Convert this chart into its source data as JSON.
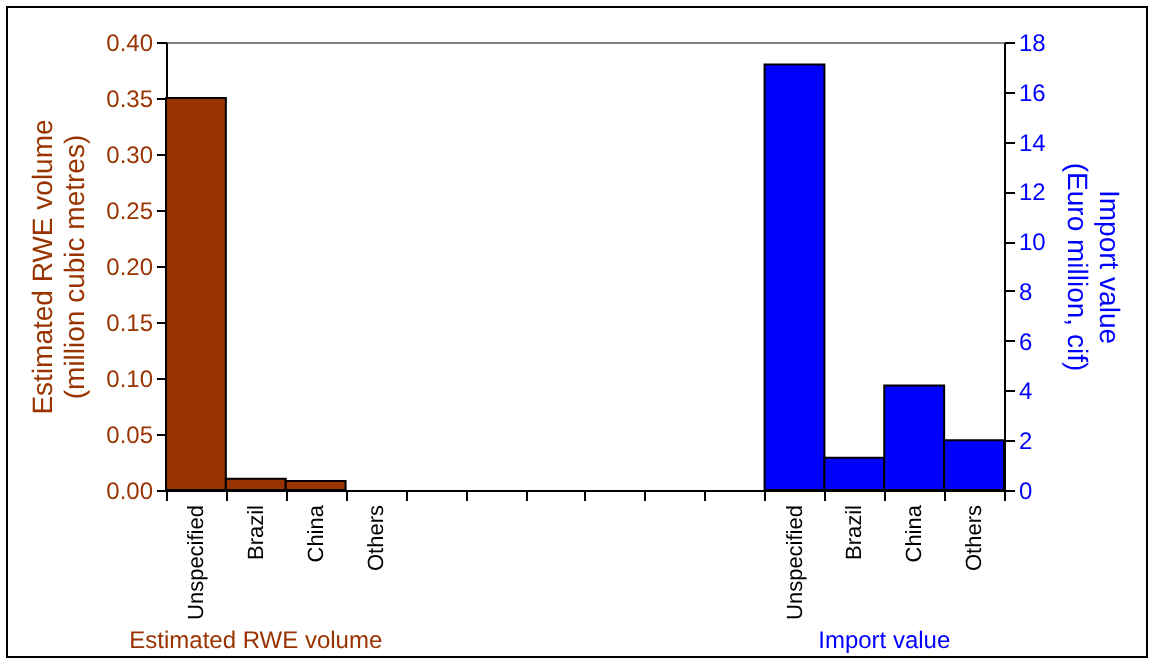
{
  "chart_data": {
    "type": "bar",
    "categories": [
      "Unspecified",
      "Brazil",
      "China",
      "Others",
      null,
      null,
      null,
      null,
      null,
      null,
      "Unspecified",
      "Brazil",
      "China",
      "Others"
    ],
    "ylabel": "Estimated RWE volume (million cubic metres)",
    "y2label": "Import value (Euro million, cif)",
    "series": [
      {
        "name": "Estimated RWE volume",
        "color": "#993300",
        "values": [
          0.35,
          0.01,
          0.008,
          null,
          null,
          null,
          null,
          null,
          null,
          null,
          null,
          null,
          null,
          null
        ]
      },
      {
        "name": "Import value",
        "color": "#0000ff",
        "axis": "y2",
        "values": [
          null,
          null,
          null,
          null,
          null,
          null,
          null,
          null,
          null,
          null,
          17.1,
          1.3,
          4.2,
          2.0
        ]
      }
    ],
    "ylim": [
      0,
      0.4
    ],
    "yticks": [
      {
        "value": 0,
        "label": "0.00"
      },
      {
        "value": 0.05,
        "label": "0.05"
      },
      {
        "value": 0.1,
        "label": "0.10"
      },
      {
        "value": 0.15,
        "label": "0.15"
      },
      {
        "value": 0.2,
        "label": "0.20"
      },
      {
        "value": 0.25,
        "label": "0.25"
      },
      {
        "value": 0.3,
        "label": "0.30"
      },
      {
        "value": 0.35,
        "label": "0.35"
      },
      {
        "value": 0.4,
        "label": "0.40"
      }
    ],
    "y2lim": [
      0,
      18
    ],
    "y2ticks": [
      0,
      2,
      4,
      6,
      8,
      10,
      12,
      14,
      16,
      18
    ],
    "grid": false
  }
}
